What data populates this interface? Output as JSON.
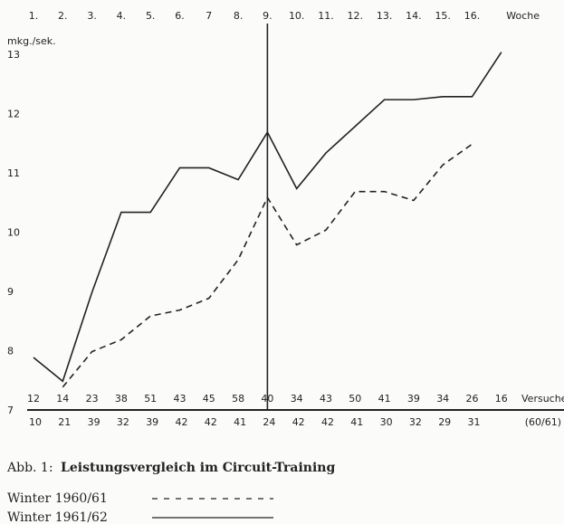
{
  "chart_data": {
    "type": "line",
    "y_label": "mkg./sek.",
    "x_label": "Woche",
    "categories": [
      "1.",
      "2.",
      "3.",
      "4.",
      "5.",
      "6.",
      "7",
      "8.",
      "9.",
      "10.",
      "11.",
      "12.",
      "13.",
      "14.",
      "15.",
      "16.",
      null
    ],
    "series": [
      {
        "name": "Winter 1960/61",
        "color": "#222222",
        "dash": true,
        "values": [
          null,
          7.4,
          8.0,
          8.2,
          8.6,
          8.7,
          8.9,
          9.55,
          10.6,
          9.8,
          10.05,
          10.7,
          10.7,
          10.55,
          11.15,
          11.5,
          null
        ]
      },
      {
        "name": "Winter 1961/62",
        "color": "#222222",
        "dash": false,
        "values": [
          7.9,
          7.5,
          9.0,
          10.35,
          10.35,
          11.1,
          11.1,
          10.9,
          11.7,
          10.75,
          11.35,
          11.8,
          12.25,
          12.25,
          12.3,
          12.3,
          13.05
        ]
      }
    ],
    "ylim": [
      7,
      13
    ],
    "yticks": [
      7,
      8,
      9,
      10,
      11,
      12,
      13
    ],
    "marker_week": 8,
    "trials_label": "Versuche",
    "trials_1961_62": [
      12,
      14,
      23,
      38,
      51,
      43,
      45,
      58,
      40,
      34,
      43,
      50,
      41,
      39,
      34,
      26,
      16
    ],
    "trials_1960_61_label": "(60/61)",
    "trials_1960_61": [
      10,
      21,
      39,
      32,
      39,
      42,
      42,
      41,
      24,
      42,
      42,
      41,
      30,
      32,
      29,
      31
    ],
    "caption_prefix": "Abb. 1:",
    "caption": "Leistungsvergleich im Circuit-Training"
  }
}
